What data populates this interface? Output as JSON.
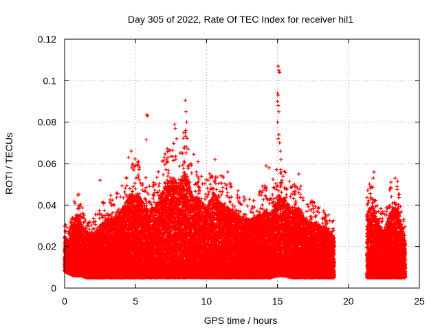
{
  "chart_data": {
    "type": "scatter",
    "title": "Day 305 of 2022, Rate Of TEC Index for receiver hil1",
    "xlabel": "GPS time / hours",
    "ylabel": "ROTI / TECUs",
    "xlim": [
      0,
      25
    ],
    "ylim": [
      0,
      0.12
    ],
    "xticks": [
      "0",
      "5",
      "10",
      "15",
      "20",
      "25"
    ],
    "yticks": [
      "0",
      "0.02",
      "0.04",
      "0.06",
      "0.08",
      "0.1",
      "0.12"
    ],
    "grid": true,
    "legend": "none",
    "marker": "plus",
    "color": "#ff0000",
    "series": [
      {
        "data_gap_hours": [
          19.0,
          21.3
        ],
        "envelope": {
          "x": [
            0.0,
            0.3,
            0.6,
            0.9,
            1.2,
            1.5,
            2.0,
            2.5,
            3.0,
            3.5,
            4.0,
            4.5,
            5.0,
            5.5,
            6.0,
            6.5,
            7.0,
            7.5,
            8.0,
            8.5,
            9.0,
            9.5,
            10.0,
            10.5,
            11.0,
            11.5,
            12.0,
            12.5,
            13.0,
            13.5,
            14.0,
            14.5,
            15.0,
            15.5,
            16.0,
            16.5,
            17.0,
            17.5,
            18.0,
            18.5,
            19.0,
            21.3,
            21.7,
            22.0,
            22.5,
            23.0,
            23.5,
            24.0
          ],
          "upper": [
            0.032,
            0.028,
            0.042,
            0.048,
            0.04,
            0.036,
            0.034,
            0.04,
            0.044,
            0.046,
            0.05,
            0.06,
            0.063,
            0.056,
            0.05,
            0.055,
            0.065,
            0.072,
            0.068,
            0.078,
            0.06,
            0.058,
            0.052,
            0.062,
            0.056,
            0.052,
            0.048,
            0.046,
            0.044,
            0.046,
            0.05,
            0.048,
            0.06,
            0.058,
            0.05,
            0.052,
            0.044,
            0.042,
            0.04,
            0.038,
            0.032,
            0.048,
            0.055,
            0.044,
            0.036,
            0.05,
            0.052,
            0.03
          ],
          "lower": [
            0.008,
            0.007,
            0.006,
            0.006,
            0.006,
            0.005,
            0.005,
            0.005,
            0.005,
            0.005,
            0.005,
            0.005,
            0.005,
            0.005,
            0.005,
            0.005,
            0.005,
            0.005,
            0.005,
            0.005,
            0.005,
            0.005,
            0.005,
            0.005,
            0.005,
            0.005,
            0.005,
            0.005,
            0.005,
            0.005,
            0.005,
            0.005,
            0.006,
            0.006,
            0.005,
            0.005,
            0.005,
            0.005,
            0.005,
            0.005,
            0.005,
            0.005,
            0.005,
            0.005,
            0.005,
            0.005,
            0.005,
            0.005
          ]
        },
        "outliers": [
          [
            5.8,
            0.0835
          ],
          [
            5.85,
            0.083
          ],
          [
            5.75,
            0.0715
          ],
          [
            7.75,
            0.079
          ],
          [
            7.8,
            0.077
          ],
          [
            7.9,
            0.072
          ],
          [
            8.5,
            0.0905
          ],
          [
            8.55,
            0.085
          ],
          [
            8.6,
            0.08
          ],
          [
            8.5,
            0.075
          ],
          [
            8.45,
            0.068
          ],
          [
            4.7,
            0.066
          ],
          [
            4.5,
            0.063
          ],
          [
            5.2,
            0.061
          ],
          [
            9.1,
            0.0645
          ],
          [
            9.4,
            0.061
          ],
          [
            10.6,
            0.062
          ],
          [
            11.5,
            0.056
          ],
          [
            15.05,
            0.107
          ],
          [
            15.1,
            0.105
          ],
          [
            15.15,
            0.104
          ],
          [
            15.0,
            0.094
          ],
          [
            15.05,
            0.093
          ],
          [
            15.0,
            0.09
          ],
          [
            15.05,
            0.088
          ],
          [
            15.1,
            0.085
          ],
          [
            15.0,
            0.08
          ],
          [
            15.1,
            0.074
          ],
          [
            15.05,
            0.072
          ],
          [
            15.15,
            0.07
          ],
          [
            15.2,
            0.066
          ],
          [
            15.25,
            0.062
          ],
          [
            14.4,
            0.058
          ],
          [
            14.2,
            0.059
          ],
          [
            16.5,
            0.055
          ],
          [
            2.5,
            0.052
          ],
          [
            21.8,
            0.056
          ],
          [
            21.75,
            0.053
          ],
          [
            23.3,
            0.053
          ],
          [
            23.0,
            0.051
          ]
        ]
      }
    ]
  }
}
